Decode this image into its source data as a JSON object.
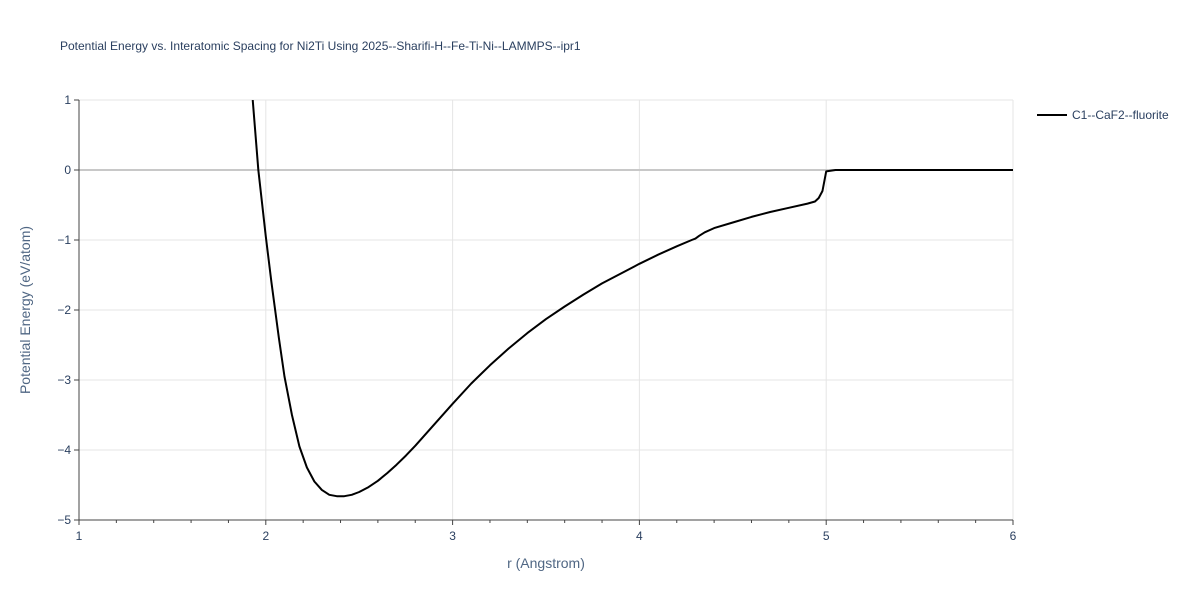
{
  "chart_data": {
    "type": "line",
    "title": "Potential Energy vs. Interatomic Spacing for Ni2Ti Using 2025--Sharifi-H--Fe-Ti-Ni--LAMMPS--ipr1",
    "xlabel": "r (Angstrom)",
    "ylabel": "Potential Energy (eV/atom)",
    "xlim": [
      1,
      6
    ],
    "ylim": [
      -5,
      1
    ],
    "x_ticks": [
      1,
      2,
      3,
      4,
      5,
      6
    ],
    "x_tick_labels": [
      "1",
      "2",
      "3",
      "4",
      "5",
      "6"
    ],
    "y_ticks": [
      -5,
      -4,
      -3,
      -2,
      -1,
      0,
      1
    ],
    "y_tick_labels": [
      "−5",
      "−4",
      "−3",
      "−2",
      "−1",
      "0",
      "1"
    ],
    "grid": true,
    "legend_position": "top-right",
    "series": [
      {
        "name": "C1--CaF2--fluorite",
        "color": "#000000",
        "x": [
          1.93,
          1.96,
          2.0,
          2.03,
          2.07,
          2.1,
          2.14,
          2.18,
          2.22,
          2.26,
          2.3,
          2.34,
          2.38,
          2.42,
          2.46,
          2.5,
          2.55,
          2.6,
          2.65,
          2.7,
          2.75,
          2.8,
          2.9,
          3.0,
          3.1,
          3.15,
          3.2,
          3.3,
          3.4,
          3.5,
          3.6,
          3.7,
          3.8,
          3.9,
          4.0,
          4.1,
          4.2,
          4.28,
          4.3,
          4.32,
          4.35,
          4.4,
          4.5,
          4.6,
          4.7,
          4.8,
          4.9,
          4.94,
          4.96,
          4.98,
          5.0,
          5.05,
          5.2,
          5.5,
          6.0
        ],
        "y": [
          1.0,
          0.0,
          -0.95,
          -1.6,
          -2.4,
          -2.95,
          -3.5,
          -3.95,
          -4.25,
          -4.45,
          -4.57,
          -4.64,
          -4.66,
          -4.66,
          -4.64,
          -4.6,
          -4.53,
          -4.44,
          -4.33,
          -4.21,
          -4.08,
          -3.94,
          -3.64,
          -3.34,
          -3.05,
          -2.92,
          -2.79,
          -2.55,
          -2.33,
          -2.13,
          -1.95,
          -1.78,
          -1.62,
          -1.48,
          -1.34,
          -1.21,
          -1.09,
          -1.0,
          -0.98,
          -0.94,
          -0.89,
          -0.83,
          -0.75,
          -0.67,
          -0.6,
          -0.54,
          -0.48,
          -0.45,
          -0.4,
          -0.3,
          -0.02,
          0.0,
          0.0,
          0.0,
          0.0
        ]
      }
    ]
  }
}
